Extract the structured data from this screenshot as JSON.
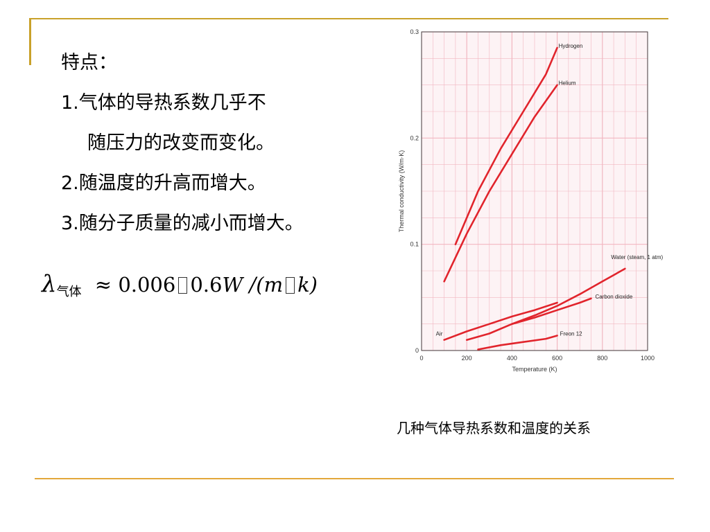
{
  "slide": {
    "heading": "特点：",
    "points": [
      "1.气体的导热系数几乎不",
      "随压力的改变而变化。",
      "2.随温度的升高而增大。",
      "3.随分子质量的减小而增大。"
    ],
    "formula": {
      "symbol": "λ",
      "subscript": "气体",
      "approx": "≈",
      "low": "0.006",
      "high": "0.6",
      "unit_w": "W",
      "unit_rest": "/(m",
      "unit_k": "k)"
    },
    "caption": "几种气体导热系数和温度的关系"
  },
  "colors": {
    "accent": "#c9a12a",
    "curve": "#e1242c",
    "grid": "#f2b6c0"
  },
  "chart_data": {
    "type": "line",
    "xlabel": "Temperature (K)",
    "ylabel": "Thermal conductivity (W/m·K)",
    "xlim": [
      0,
      1000
    ],
    "ylim": [
      0,
      0.3
    ],
    "x_ticks": [
      "0",
      "200",
      "400",
      "600",
      "800",
      "1000"
    ],
    "y_ticks": [
      "0",
      "0.1",
      "0.2",
      "0.3"
    ],
    "grid": true,
    "series": [
      {
        "name": "Hydrogen",
        "x": [
          150,
          250,
          350,
          450,
          550,
          600
        ],
        "y": [
          0.1,
          0.15,
          0.19,
          0.225,
          0.26,
          0.285
        ]
      },
      {
        "name": "Helium",
        "x": [
          100,
          200,
          300,
          400,
          500,
          600
        ],
        "y": [
          0.065,
          0.11,
          0.15,
          0.185,
          0.22,
          0.25
        ]
      },
      {
        "name": "Water (steam, 1 atm)",
        "x": [
          400,
          500,
          600,
          700,
          800,
          900
        ],
        "y": [
          0.025,
          0.033,
          0.042,
          0.053,
          0.065,
          0.077
        ]
      },
      {
        "name": "Carbon dioxide",
        "x": [
          200,
          300,
          400,
          500,
          600,
          700,
          750
        ],
        "y": [
          0.01,
          0.016,
          0.025,
          0.031,
          0.038,
          0.045,
          0.049
        ]
      },
      {
        "name": "Air",
        "x": [
          100,
          200,
          300,
          400,
          500,
          600
        ],
        "y": [
          0.01,
          0.018,
          0.025,
          0.032,
          0.038,
          0.045
        ]
      },
      {
        "name": "Freon 12",
        "x": [
          250,
          350,
          450,
          550,
          600
        ],
        "y": [
          0.001,
          0.005,
          0.008,
          0.011,
          0.014
        ]
      }
    ]
  }
}
